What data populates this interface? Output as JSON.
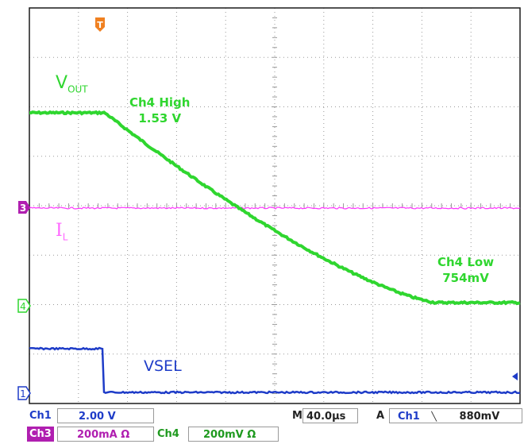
{
  "channels": {
    "vout": {
      "label_main": "V",
      "label_sub": "OUT",
      "color": "#2fd62f",
      "marker": "4"
    },
    "il": {
      "label_main": "I",
      "label_sub": "L",
      "color": "#ff33ff",
      "marker": "3"
    },
    "vsel": {
      "label": "VSEL",
      "color": "#1e3cc8",
      "marker": "1"
    }
  },
  "trigger": {
    "icon": "trigger-T-icon",
    "letter": "T",
    "color": "#f08020"
  },
  "annotations": {
    "high_title": "Ch4 High",
    "high_value": "1.53 V",
    "low_title": "Ch4 Low",
    "low_value": "754mV"
  },
  "status": {
    "ch1_tag": "Ch1",
    "ch1_scale": "2.00 V",
    "ch3_tag": "Ch3",
    "ch3_scale": "200mA Ω",
    "ch4_tag": "Ch4",
    "ch4_scale": "200mV Ω",
    "timebase_tag": "M",
    "timebase": "40.0µs",
    "trig_mode": "A",
    "trig_src": "Ch1",
    "trig_slope": "╲",
    "trig_level": "880mV"
  }
}
